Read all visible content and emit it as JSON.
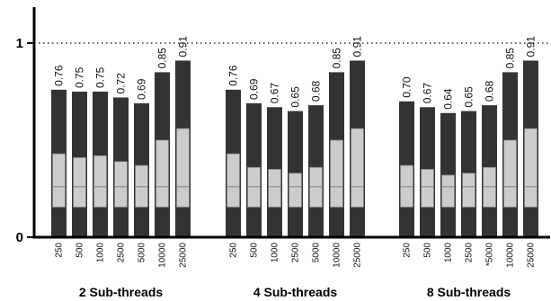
{
  "chart_data": {
    "type": "bar",
    "stacked": true,
    "title": "",
    "ylim": [
      0,
      1.05
    ],
    "yticks": [
      {
        "value": 0,
        "label": "0"
      },
      {
        "value": 1,
        "label": "1"
      }
    ],
    "reference_line": {
      "value": 1,
      "style": "dotted"
    },
    "colors": {
      "top": "#333333",
      "middle": "#cccccc",
      "base": "#d9d9d9",
      "outline": "#7f7f7f"
    },
    "segment_levels": {
      "base": 0.155,
      "mid_line": 0.26
    },
    "groups": [
      {
        "label": "2 Sub-threads",
        "bars": [
          {
            "category": "250",
            "total": 0.76,
            "light_top": 0.43,
            "value_label": "0.76"
          },
          {
            "category": "500",
            "total": 0.75,
            "light_top": 0.41,
            "value_label": "0.75"
          },
          {
            "category": "1000",
            "total": 0.75,
            "light_top": 0.42,
            "value_label": "0.75"
          },
          {
            "category": "2500",
            "total": 0.72,
            "light_top": 0.39,
            "value_label": "0.72"
          },
          {
            "category": "5000",
            "total": 0.69,
            "light_top": 0.37,
            "value_label": "0.69"
          },
          {
            "category": "10000",
            "total": 0.85,
            "light_top": 0.5,
            "value_label": "0.85"
          },
          {
            "category": "25000",
            "total": 0.91,
            "light_top": 0.56,
            "value_label": "0.91"
          }
        ]
      },
      {
        "label": "4 Sub-threads",
        "bars": [
          {
            "category": "250",
            "total": 0.76,
            "light_top": 0.43,
            "value_label": "0.76"
          },
          {
            "category": "500",
            "total": 0.69,
            "light_top": 0.36,
            "value_label": "0.69"
          },
          {
            "category": "1000",
            "total": 0.67,
            "light_top": 0.35,
            "value_label": "0.67"
          },
          {
            "category": "2500",
            "total": 0.65,
            "light_top": 0.33,
            "value_label": "0.65"
          },
          {
            "category": "5000",
            "total": 0.68,
            "light_top": 0.36,
            "value_label": "0.68"
          },
          {
            "category": "10000",
            "total": 0.85,
            "light_top": 0.5,
            "value_label": "0.85"
          },
          {
            "category": "25000",
            "total": 0.91,
            "light_top": 0.56,
            "value_label": "0.91"
          }
        ]
      },
      {
        "label": "8 Sub-threads",
        "bars": [
          {
            "category": "250",
            "total": 0.7,
            "light_top": 0.37,
            "value_label": "0.70"
          },
          {
            "category": "500",
            "total": 0.67,
            "light_top": 0.35,
            "value_label": "0.67"
          },
          {
            "category": "1000",
            "total": 0.64,
            "light_top": 0.32,
            "value_label": "0.64"
          },
          {
            "category": "2500",
            "total": 0.65,
            "light_top": 0.33,
            "value_label": "0.65"
          },
          {
            "category": "*5000",
            "total": 0.68,
            "light_top": 0.36,
            "value_label": "0.68"
          },
          {
            "category": "10000",
            "total": 0.85,
            "light_top": 0.5,
            "value_label": "0.85"
          },
          {
            "category": "25000",
            "total": 0.91,
            "light_top": 0.56,
            "value_label": "0.91"
          }
        ]
      }
    ]
  }
}
